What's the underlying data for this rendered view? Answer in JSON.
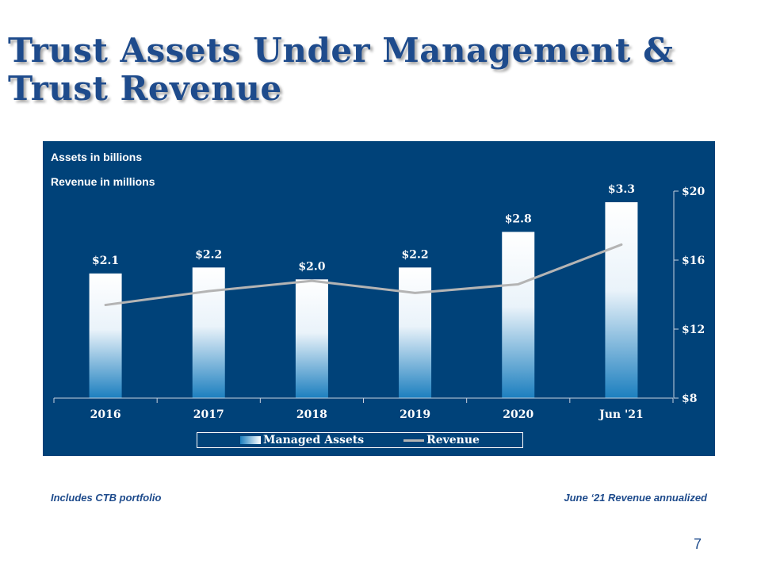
{
  "slide": {
    "title_line1": "Trust Assets Under Management &",
    "title_line2": "Trust Revenue",
    "footnote_left": "Includes CTB portfolio",
    "footnote_right": "June ‘21 Revenue annualized",
    "page_number": "7"
  },
  "chart_data": {
    "type": "bar",
    "notes": [
      "Assets in billions",
      "Revenue in millions"
    ],
    "categories": [
      "2016",
      "2017",
      "2018",
      "2019",
      "2020",
      "Jun '21"
    ],
    "series": [
      {
        "name": "Managed Assets",
        "type": "bar",
        "values": [
          2.1,
          2.2,
          2.0,
          2.2,
          2.8,
          3.3
        ],
        "labels": [
          "$2.1",
          "$2.2",
          "$2.0",
          "$2.2",
          "$2.8",
          "$3.3"
        ],
        "color_top": "#ffffff",
        "color_bottom": "#1c7fbf"
      },
      {
        "name": "Revenue",
        "type": "line",
        "axis": "right",
        "values": [
          13.4,
          14.2,
          14.8,
          14.1,
          14.6,
          16.9
        ],
        "color": "#b4b4b4"
      }
    ],
    "left_axis": {
      "min": 0,
      "max": 3.5,
      "visible": false
    },
    "right_axis": {
      "min": 8,
      "max": 20,
      "ticks": [
        "$8",
        "$12",
        "$16",
        "$20"
      ],
      "tick_values": [
        8,
        12,
        16,
        20
      ]
    },
    "legend_position": "bottom",
    "grid": false,
    "colors": {
      "panel": "#004279",
      "text": "#ffffff",
      "axis": "#c8d2de"
    }
  }
}
